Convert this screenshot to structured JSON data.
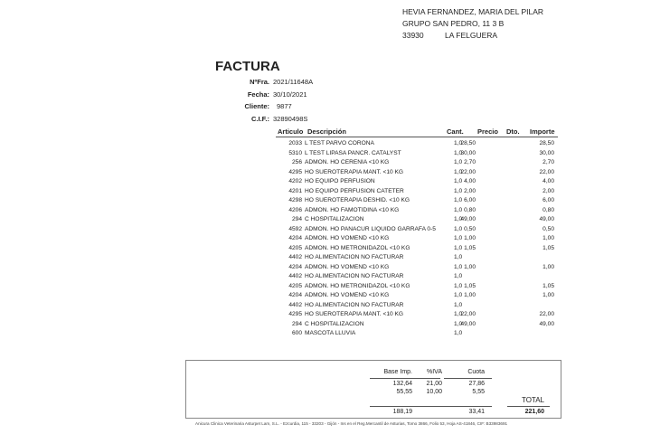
{
  "recipient": {
    "name": "HEVIA FERNANDEZ, MARIA DEL PILAR",
    "street": "GRUPO SAN PEDRO, 11 3 B",
    "postal_code": "33930",
    "city": "LA FELGUERA"
  },
  "invoice": {
    "title": "FACTURA",
    "fields": [
      {
        "label": "NºFra.",
        "value": "2021/11648A"
      },
      {
        "label": "Fecha:",
        "value": "30/10/2021"
      },
      {
        "label": "Cliente:",
        "value": "9877"
      },
      {
        "label": "C.I.F.:",
        "value": "32890498S"
      }
    ]
  },
  "table": {
    "headers": {
      "articulo": "Articulo",
      "descripcion": "Descripción",
      "cant": "Cant.",
      "precio": "Precio",
      "dto": "Dto.",
      "importe": "Importe"
    },
    "rows": [
      {
        "code": "2033",
        "desc": "L TEST PARVO CORONA",
        "cant": "1,0",
        "precio": "28,50",
        "importe": "28,50"
      },
      {
        "code": "5310",
        "desc": "L TEST LIPASA PANCR. CATALYST",
        "cant": "1,0",
        "precio": "30,00",
        "importe": "30,00"
      },
      {
        "code": "256",
        "desc": "ADMON. HO CERENIA <10 KG",
        "cant": "1,0",
        "precio": "2,70",
        "importe": "2,70"
      },
      {
        "code": "4295",
        "desc": "HO SUEROTERAPIA MANT. <10 KG",
        "cant": "1,0",
        "precio": "22,00",
        "importe": "22,00"
      },
      {
        "code": "4202",
        "desc": "HO EQUIPO PERFUSION",
        "cant": "1,0",
        "precio": "4,00",
        "importe": "4,00"
      },
      {
        "code": "4201",
        "desc": "HO EQUIPO PERFUSION CATETER",
        "cant": "1,0",
        "precio": "2,00",
        "importe": "2,00"
      },
      {
        "code": "4298",
        "desc": "HO SUEROTERAPIA DESHID. <10 KG",
        "cant": "1,0",
        "precio": "6,00",
        "importe": "6,00"
      },
      {
        "code": "4206",
        "desc": "ADMON. HO FAMOTIDINA <10 KG",
        "cant": "1,0",
        "precio": "0,80",
        "importe": "0,80"
      },
      {
        "code": "294",
        "desc": "C HOSPITALIZACION",
        "cant": "1,0",
        "precio": "49,00",
        "importe": "49,00"
      },
      {
        "code": "4592",
        "desc": "ADMON. HO PANACUR LIQUIDO GARRAFA 0-5",
        "cant": "1,0",
        "precio": "0,50",
        "importe": "0,50"
      },
      {
        "code": "4204",
        "desc": "ADMON. HO VOMEND <10 KG",
        "cant": "1,0",
        "precio": "1,00",
        "importe": "1,00"
      },
      {
        "code": "4205",
        "desc": "ADMON. HO METRONIDAZOL <10 KG",
        "cant": "1,0",
        "precio": "1,05",
        "importe": "1,05"
      },
      {
        "code": "4402",
        "desc": "HO ALIMENTACION NO FACTURAR",
        "cant": "1,0",
        "precio": "",
        "importe": ""
      },
      {
        "code": "4204",
        "desc": "ADMON. HO VOMEND <10 KG",
        "cant": "1,0",
        "precio": "1,00",
        "importe": "1,00"
      },
      {
        "code": "4402",
        "desc": "HO ALIMENTACION NO FACTURAR",
        "cant": "1,0",
        "precio": "",
        "importe": ""
      },
      {
        "code": "4205",
        "desc": "ADMON. HO METRONIDAZOL <10 KG",
        "cant": "1,0",
        "precio": "1,05",
        "importe": "1,05"
      },
      {
        "code": "4204",
        "desc": "ADMON. HO VOMEND <10 KG",
        "cant": "1,0",
        "precio": "1,00",
        "importe": "1,00"
      },
      {
        "code": "4402",
        "desc": "HO ALIMENTACION NO FACTURAR",
        "cant": "1,0",
        "precio": "",
        "importe": ""
      },
      {
        "code": "4295",
        "desc": "HO SUEROTERAPIA MANT. <10 KG",
        "cant": "1,0",
        "precio": "22,00",
        "importe": "22,00"
      },
      {
        "code": "294",
        "desc": "C HOSPITALIZACION",
        "cant": "1,0",
        "precio": "49,00",
        "importe": "49,00"
      },
      {
        "code": "600",
        "desc": "MASCOTA LLUVIA",
        "cant": "1,0",
        "precio": "",
        "importe": ""
      }
    ]
  },
  "totals": {
    "headers": {
      "base": "Base Imp.",
      "iva": "%IVA",
      "cuota": "Cuota",
      "total": "TOTAL"
    },
    "lines": [
      {
        "base": "132,64",
        "iva": "21,00",
        "cuota": "27,86"
      },
      {
        "base": "55,55",
        "iva": "10,00",
        "cuota": "5,55"
      }
    ],
    "sum_base": "188,19",
    "sum_cuota": "33,41",
    "total": "221,60"
  },
  "footer": "Anicura Clinica Veterinaria Asturpet Lam, S.L. - Ezcurdia, 115 - 33203 - Gijón - Ins en el Reg.Mercantil de Asturias, Tomo 3866, Folio 53, Hoja AS-41846, CIF: B33983691"
}
